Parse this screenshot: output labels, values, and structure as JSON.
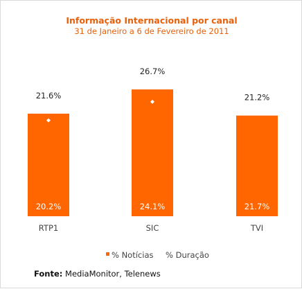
{
  "chart_data": {
    "type": "bar",
    "title": "Informação Internacional por canal",
    "subtitle": "31 de Janeiro a 6 de Fevereiro de 2011",
    "categories": [
      "RTP1",
      "SIC",
      "TVI"
    ],
    "series": [
      {
        "name": "% Notícias",
        "values": [
          21.6,
          26.7,
          21.2
        ],
        "labels": [
          "21.6%",
          "26.7%",
          "21.2%"
        ],
        "color": "#ff6600"
      },
      {
        "name": "% Duração",
        "values": [
          20.2,
          24.1,
          21.7
        ],
        "labels": [
          "20.2%",
          "24.1%",
          "21.7%"
        ],
        "color": "#ffffff"
      }
    ],
    "ylim": [
      0,
      27
    ],
    "grid": false,
    "legend": "bottom"
  },
  "footer": {
    "prefix": "Fonte:",
    "text": " MediaMonitor, Telenews"
  },
  "colors": {
    "accent": "#ff6600",
    "title": "#e8600a"
  }
}
